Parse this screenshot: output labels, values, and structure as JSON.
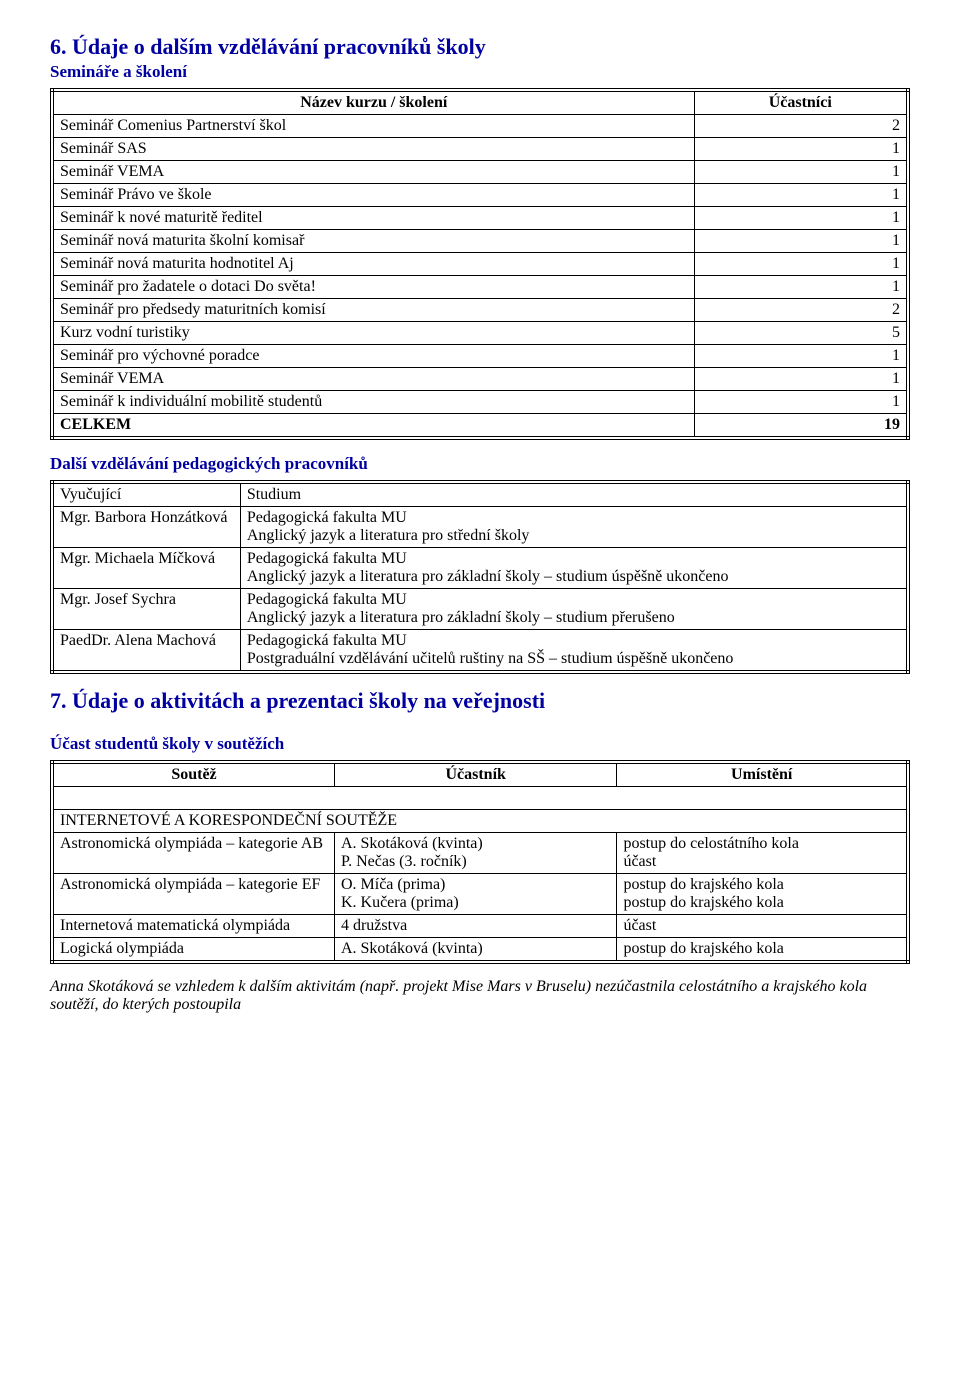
{
  "section6": {
    "heading": "6. Údaje o dalším vzdělávání pracovníků školy",
    "sub1": "Semináře a školení",
    "table1": {
      "header_name": "Název kurzu / školení",
      "header_count": "Účastníci",
      "rows": [
        {
          "name": "Seminář Comenius Partnerství škol",
          "count": "2"
        },
        {
          "name": "Seminář SAS",
          "count": "1"
        },
        {
          "name": "Seminář VEMA",
          "count": "1"
        },
        {
          "name": "Seminář Právo ve škole",
          "count": "1"
        },
        {
          "name": "Seminář k nové maturitě ředitel",
          "count": "1"
        },
        {
          "name": "Seminář nová maturita školní komisař",
          "count": "1"
        },
        {
          "name": "Seminář nová maturita hodnotitel Aj",
          "count": "1"
        },
        {
          "name": "Seminář pro žadatele o dotaci Do světa!",
          "count": "1"
        },
        {
          "name": "Seminář pro předsedy maturitních komisí",
          "count": "2"
        },
        {
          "name": "Kurz vodní turistiky",
          "count": "5"
        },
        {
          "name": "Seminář pro výchovné poradce",
          "count": "1"
        },
        {
          "name": "Seminář VEMA",
          "count": "1"
        },
        {
          "name": "Seminář k individuální mobilitě studentů",
          "count": "1"
        }
      ],
      "total_label": "CELKEM",
      "total_value": "19"
    },
    "sub2": "Další vzdělávání pedagogických pracovníků",
    "table2": {
      "header_teacher": "Vyučující",
      "header_study": "Studium",
      "rows": [
        {
          "teacher": "Mgr. Barbora Honzátková",
          "study": "Pedagogická fakulta MU\nAnglický jazyk a literatura pro střední školy"
        },
        {
          "teacher": "Mgr. Michaela Míčková",
          "study": "Pedagogická fakulta MU\nAnglický jazyk a literatura pro základní školy – studium úspěšně ukončeno"
        },
        {
          "teacher": "Mgr. Josef Sychra",
          "study": "Pedagogická fakulta MU\nAnglický jazyk a literatura pro základní školy – studium přerušeno"
        },
        {
          "teacher": "PaedDr. Alena Machová",
          "study": "Pedagogická fakulta MU\nPostgraduální vzdělávání učitelů ruštiny na SŠ – studium úspěšně ukončeno"
        }
      ]
    }
  },
  "section7": {
    "heading": "7. Údaje o aktivitách a prezentaci školy na veřejnosti",
    "sub": "Účast studentů školy v soutěžích",
    "table": {
      "header_contest": "Soutěž",
      "header_participant": "Účastník",
      "header_place": "Umístění",
      "group1_title": "INTERNETOVÉ A KORESPONDEČNÍ SOUTĚŽE",
      "rows": [
        {
          "contest": "Astronomická olympiáda – kategorie AB",
          "participant": "A. Skotáková (kvinta)\nP. Nečas (3. ročník)",
          "place": "postup do celostátního kola\núčast"
        },
        {
          "contest": "Astronomická olympiáda – kategorie EF",
          "participant": "O. Míča (prima)\nK. Kučera (prima)",
          "place": "postup do krajského kola\npostup do krajského kola"
        },
        {
          "contest": "Internetová matematická olympiáda",
          "participant": "4 družstva",
          "place": "účast"
        },
        {
          "contest": "Logická olympiáda",
          "participant": "A. Skotáková (kvinta)",
          "place": "postup do krajského kola"
        }
      ]
    },
    "footnote": "Anna Skotáková se vzhledem k dalším aktivitám (např. projekt Mise Mars v Bruselu) nezúčastnila celostátního a krajského kola soutěží, do kterých postoupila"
  },
  "styles": {
    "heading_color": "#0000a0",
    "heading_fontsize": 22,
    "subheading_fontsize": 17,
    "body_fontsize": 16,
    "background": "#ffffff",
    "text_color": "#000000",
    "table_border_style": "double",
    "font_family": "Times New Roman"
  }
}
